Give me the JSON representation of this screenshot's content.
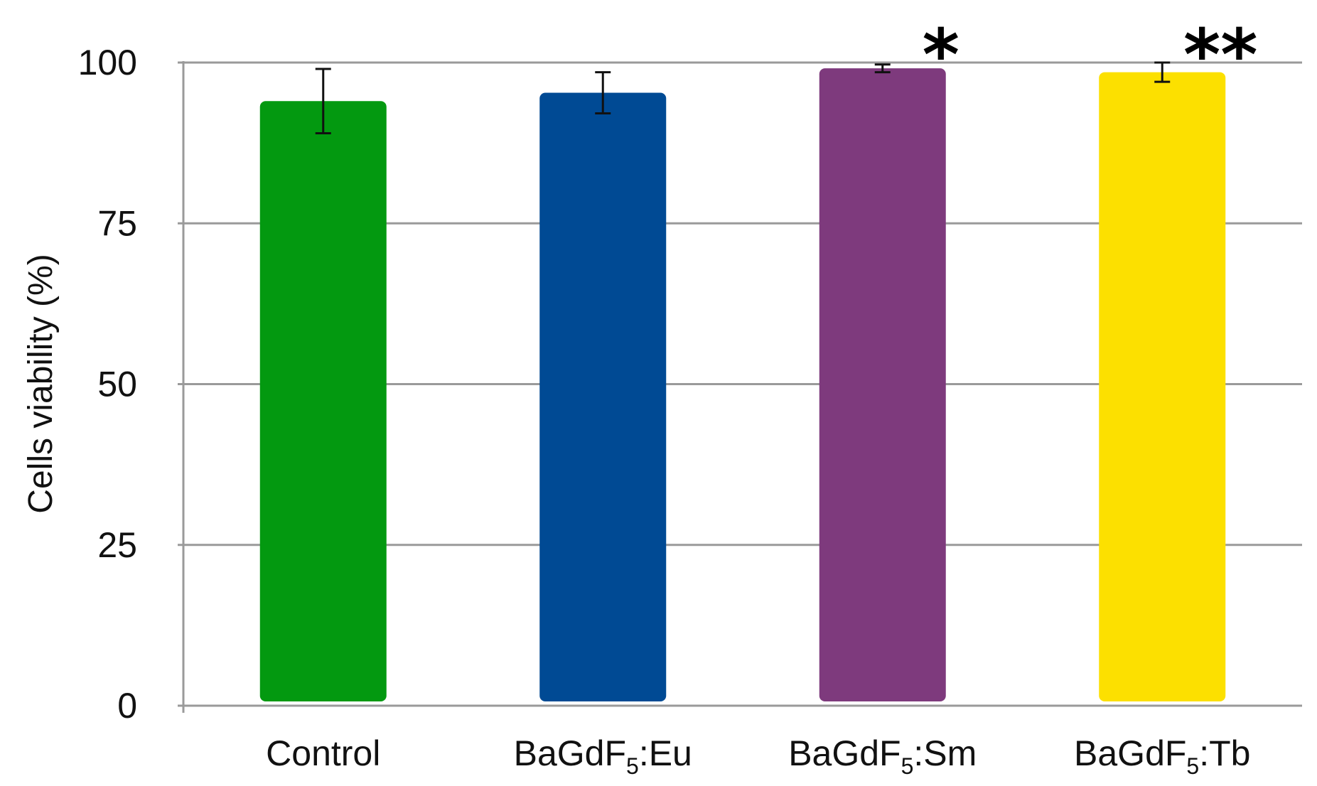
{
  "chart_data": {
    "type": "bar",
    "categories": [
      {
        "base": "Control",
        "sub": "",
        "suffix": ""
      },
      {
        "base": "BaGdF",
        "sub": "5",
        "suffix": ":Eu"
      },
      {
        "base": "BaGdF",
        "sub": "5",
        "suffix": ":Sm"
      },
      {
        "base": "BaGdF",
        "sub": "5",
        "suffix": ":Tb"
      }
    ],
    "values": [
      94,
      95.3,
      99.1,
      98.5
    ],
    "errors": [
      5,
      3.2,
      0.6,
      1.5
    ],
    "colors": [
      "#039910",
      "#004A94",
      "#7E3A7D",
      "#FCE000"
    ],
    "annotations": [
      "",
      "",
      "*",
      "**"
    ],
    "ylabel": "Cells viability (%)",
    "xlabel": "",
    "title": "",
    "ylim": [
      0,
      100
    ],
    "yticks": [
      0,
      25,
      50,
      75,
      100
    ],
    "grid": true
  }
}
